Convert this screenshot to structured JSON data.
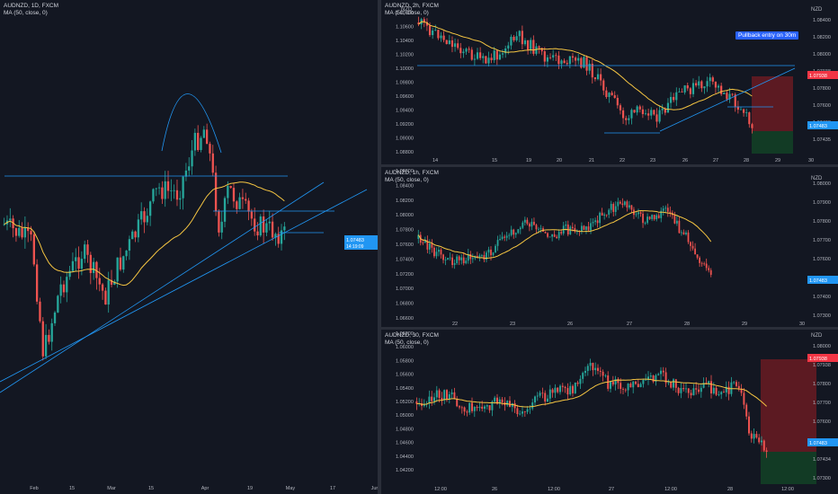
{
  "panes": [
    {
      "id": "daily",
      "symbol": "AUDNZD, 1D, FXCM",
      "indicator": "MA (50, close, 0)",
      "price_tag": "1.07483",
      "price_tag_sub": "14:19:09",
      "x_labels": [
        "Feb",
        "15",
        "Mar",
        "15",
        "Apr",
        "19",
        "May",
        "17",
        "Jun"
      ]
    },
    {
      "id": "2h",
      "symbol": "AUDNZD, 2h, FXCM",
      "indicator": "MA (50, close, 0)",
      "currency": "NZD",
      "annotation": "Pullback entry on 30m",
      "y_labels": [
        "1.10800",
        "1.10600",
        "1.10400",
        "1.10200",
        "1.10000",
        "1.09800",
        "1.09600",
        "1.09400",
        "1.09200",
        "1.09000",
        "1.08800"
      ],
      "right_labels": [
        "1.08400",
        "1.08200",
        "1.08000",
        "1.07938",
        "1.07800",
        "1.07600",
        "1.07483",
        "1.07435"
      ],
      "x_labels": [
        "14",
        "15",
        "19",
        "20",
        "21",
        "22",
        "23",
        "26",
        "27",
        "28",
        "29",
        "30"
      ]
    },
    {
      "id": "1h",
      "symbol": "AUDNZD, 1h, FXCM",
      "indicator": "MA (50, close, 0)",
      "currency": "NZD",
      "y_labels": [
        "1.08600",
        "1.08400",
        "1.08200",
        "1.08000",
        "1.07800",
        "1.07600",
        "1.07400",
        "1.07200",
        "1.07000",
        "1.06800",
        "1.06600"
      ],
      "right_labels": [
        "1.08000",
        "1.07900",
        "1.07800",
        "1.07700",
        "1.07600",
        "1.07483",
        "1.07400",
        "1.07300"
      ],
      "x_labels": [
        "22",
        "23",
        "26",
        "27",
        "28",
        "29",
        "30"
      ]
    },
    {
      "id": "30m",
      "symbol": "AUDNZD, 30, FXCM",
      "indicator": "MA (50, close, 0)",
      "currency": "NZD",
      "y_labels": [
        "1.06200",
        "1.06000",
        "1.05800",
        "1.05600",
        "1.05400",
        "1.05200",
        "1.05000",
        "1.04800",
        "1.04600",
        "1.04400",
        "1.04200"
      ],
      "right_labels": [
        "1.08000",
        "1.07938",
        "1.07800",
        "1.07700",
        "1.07600",
        "1.07483",
        "1.07434",
        "1.07300"
      ],
      "x_labels": [
        "12:00",
        "26",
        "12:00",
        "27",
        "12:00",
        "28",
        "12:00"
      ]
    }
  ],
  "colors": {
    "background": "#131722",
    "up": "#26a69a",
    "down": "#ef5350",
    "ma": "#f5c542",
    "trendline": "#2196f3",
    "price_tag": "#2196f3",
    "stop_tag": "#f23645",
    "stop_zone": "#5c1a22",
    "target_zone": "#123b25"
  }
}
